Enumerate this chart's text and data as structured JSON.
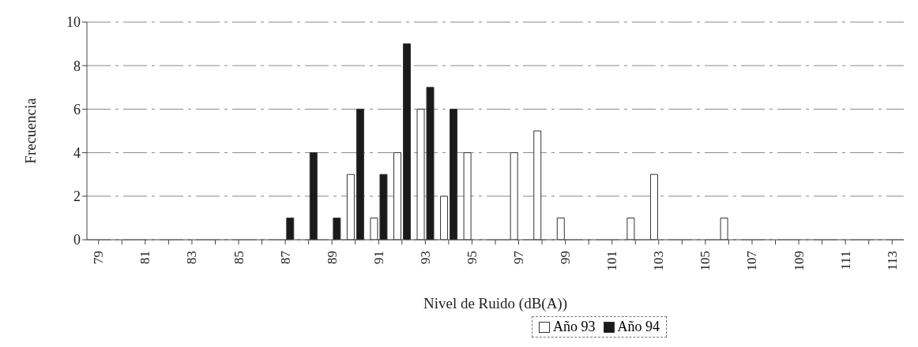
{
  "chart_data": {
    "type": "bar",
    "xlabel": "Nivel de Ruido (dB(A))",
    "ylabel": "Frecuencia",
    "categories": [
      "79",
      null,
      "81",
      null,
      "83",
      null,
      "85",
      null,
      "87",
      null,
      "89",
      null,
      "91",
      null,
      "93",
      null,
      "95",
      null,
      "97",
      null,
      "99",
      null,
      "101",
      null,
      "103",
      null,
      "105",
      null,
      "107",
      null,
      "109",
      null,
      "111",
      null,
      "113"
    ],
    "series": [
      {
        "name": "Año 93",
        "color": "#ffffff",
        "values": [
          0,
          0,
          0,
          0,
          0,
          0,
          0,
          0,
          0,
          0,
          0,
          3,
          1,
          4,
          6,
          2,
          4,
          0,
          4,
          5,
          1,
          0,
          0,
          1,
          3,
          0,
          0,
          1,
          0,
          0,
          0,
          0,
          0,
          0,
          0
        ]
      },
      {
        "name": "Año 94",
        "color": "#1a1a1a",
        "values": [
          0,
          0,
          0,
          0,
          0,
          0,
          0,
          0,
          1,
          4,
          1,
          6,
          3,
          9,
          7,
          6,
          0,
          0,
          0,
          0,
          0,
          0,
          0,
          0,
          0,
          0,
          0,
          0,
          0,
          0,
          0,
          0,
          0,
          0,
          0
        ]
      }
    ],
    "ylim": [
      0,
      10
    ],
    "yticks": [
      0,
      2,
      4,
      6,
      8,
      10
    ],
    "grid": "y",
    "legend": "bottom right"
  }
}
